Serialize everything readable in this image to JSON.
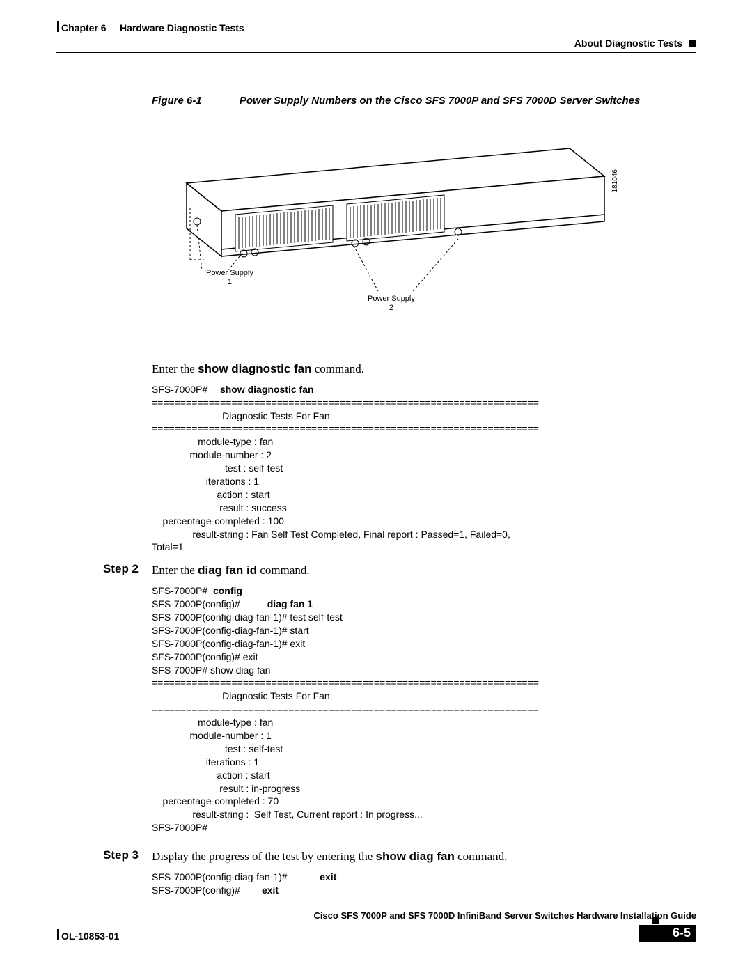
{
  "header": {
    "chapter": "Chapter 6",
    "chapter_title": "Hardware Diagnostic Tests",
    "section": "About Diagnostic Tests"
  },
  "figure": {
    "label": "Figure 6-1",
    "caption": "Power Supply Numbers on the Cisco SFS 7000P and SFS 7000D Server Switches",
    "ps1_label": "Power Supply",
    "ps1_num": "1",
    "ps2_label": "Power Supply",
    "ps2_num": "2",
    "side_ref": "181046"
  },
  "intro_text": "Enter the ",
  "intro_cmd": "show diagnostic fan",
  "intro_tail": " command.",
  "terminal1": {
    "prompt": "SFS-7000P#  ",
    "cmd": "show diagnostic fan",
    "output": "\n====================================================================\n                          Diagnostic Tests For Fan\n====================================================================\n                 module-type : fan\n              module-number : 2\n                           test : self-test\n                    iterations : 1\n                        action : start\n                         result : success\n    percentage-completed : 100\n               result-string : Fan Self Test Completed, Final report : Passed=1, Failed=0, \nTotal=1"
  },
  "step2": {
    "label": "Step 2",
    "text_pre": "Enter the ",
    "cmd": "diag fan id",
    "text_post": " command."
  },
  "terminal2": {
    "lines": [
      {
        "p": "SFS-7000P#  ",
        "c": "config"
      },
      {
        "p": "SFS-7000P(config)#          ",
        "c": "diag fan 1"
      },
      {
        "p": "SFS-7000P(config-diag-fan-1)# test self-test",
        "c": ""
      },
      {
        "p": "SFS-7000P(config-diag-fan-1)# start",
        "c": ""
      },
      {
        "p": "SFS-7000P(config-diag-fan-1)# exit",
        "c": ""
      },
      {
        "p": "SFS-7000P(config)# exit",
        "c": ""
      },
      {
        "p": "SFS-7000P# show diag fan",
        "c": ""
      }
    ],
    "output": "====================================================================\n                          Diagnostic Tests For Fan\n====================================================================\n                 module-type : fan\n              module-number : 1\n                           test : self-test\n                    iterations : 1\n                        action : start\n                         result : in-progress\n    percentage-completed : 70\n               result-string :  Self Test, Current report : In progress...\nSFS-7000P#"
  },
  "step3": {
    "label": "Step 3",
    "text_pre": "Display the progress of the test by entering the ",
    "cmd": "show diag fan",
    "text_post": " command."
  },
  "terminal3": {
    "lines": [
      {
        "p": "SFS-7000P(config-diag-fan-1)#            ",
        "c": "exit"
      },
      {
        "p": "SFS-7000P(config)#        ",
        "c": "exit"
      }
    ]
  },
  "footer": {
    "doc_title": "Cisco SFS 7000P and SFS 7000D InfiniBand Server Switches Hardware Installation Guide",
    "doc_id": "OL-10853-01",
    "page_num": "6-5"
  },
  "colors": {
    "text": "#000000",
    "bg": "#ffffff"
  }
}
